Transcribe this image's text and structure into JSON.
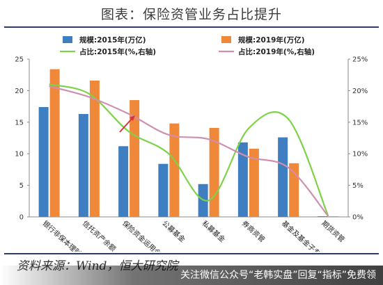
{
  "page": {
    "title": "图表：保险资管业务占比提升",
    "source": "资料来源：Wind，恒大研究院",
    "watermark": "关注微信公众号“老韩实盘”回复“指标”免费领"
  },
  "colors": {
    "bar2015": "#3f7fc1",
    "bar2019": "#f0883a",
    "line2015": "#7ed24a",
    "line2019": "#cf8fae",
    "arrow": "#d9343b",
    "rule": "#2a3d66"
  },
  "chart_data": {
    "type": "bar",
    "categories": [
      "银行非保本理财",
      "信托资产余额",
      "保险资金运用余额",
      "公募基金",
      "私募基金",
      "券商资管",
      "基金及基金子专户",
      "期货资管"
    ],
    "series": [
      {
        "name": "规模:2015年(万亿)",
        "kind": "bar",
        "axis": "left",
        "values": [
          17.4,
          16.3,
          11.2,
          8.4,
          5.2,
          11.8,
          12.6,
          0.1
        ]
      },
      {
        "name": "规模:2019年(万亿)",
        "kind": "bar",
        "axis": "left",
        "values": [
          23.4,
          21.6,
          18.5,
          14.8,
          14.1,
          10.8,
          8.5,
          0.1
        ]
      },
      {
        "name": "占比:2015年(%,右轴)",
        "kind": "line",
        "axis": "right",
        "values": [
          21.0,
          19.5,
          13.5,
          10.0,
          2.6,
          14.0,
          15.5,
          0.1
        ]
      },
      {
        "name": "占比:2019年(%,右轴)",
        "kind": "line",
        "axis": "right",
        "values": [
          20.7,
          19.0,
          16.3,
          13.0,
          12.3,
          9.5,
          7.8,
          0.1
        ]
      }
    ],
    "ylim": [
      0,
      25
    ],
    "y2lim": [
      0,
      25
    ],
    "yticks": [
      "0",
      "5",
      "10",
      "15",
      "20",
      "25"
    ],
    "y2ticks": [
      "0%",
      "5%",
      "10%",
      "15%",
      "20%",
      "25%"
    ],
    "legend_position": "top",
    "grid": false,
    "annotation": "red arrow pointing to 保险资金运用余额"
  }
}
